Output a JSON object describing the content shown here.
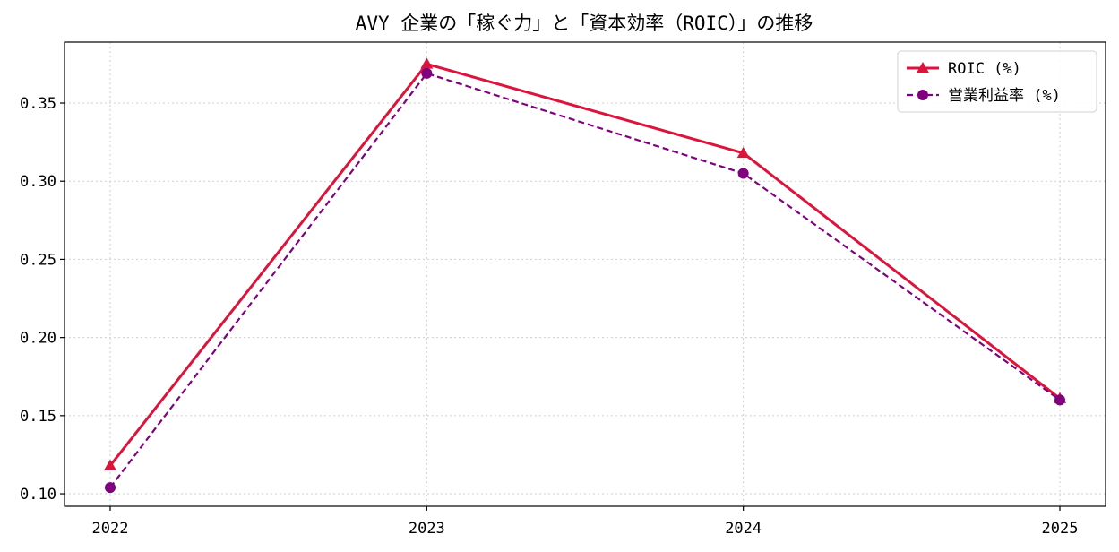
{
  "chart_data": {
    "type": "line",
    "title": "AVY 企業の「稼ぐ力」と「資本効率（ROIC）」の推移",
    "xlabel": "",
    "ylabel": "",
    "x": [
      "2022",
      "2023",
      "2024",
      "2025"
    ],
    "ylim": [
      0.092,
      0.389
    ],
    "yticks": [
      "0.10",
      "0.15",
      "0.20",
      "0.25",
      "0.30",
      "0.35"
    ],
    "grid": true,
    "legend_position": "top-right",
    "series": [
      {
        "name": "ROIC (%)",
        "values": [
          0.118,
          0.375,
          0.318,
          0.161
        ],
        "color": "#dc143c",
        "marker": "triangle",
        "line_style": "solid"
      },
      {
        "name": "営業利益率 (%)",
        "values": [
          0.104,
          0.369,
          0.305,
          0.16
        ],
        "color": "#800080",
        "marker": "circle",
        "line_style": "dashed"
      }
    ]
  }
}
